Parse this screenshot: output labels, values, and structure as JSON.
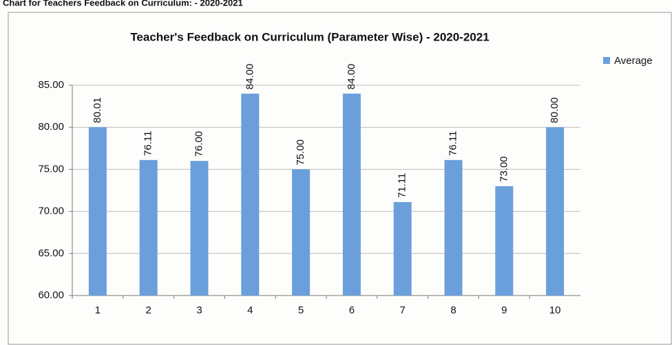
{
  "header": {
    "title": "Chart for Teachers Feedback on Curriculum: - 2020-2021"
  },
  "chart_data": {
    "type": "bar",
    "title": "Teacher's Feedback on Curriculum (Parameter Wise) - 2020-2021",
    "categories": [
      "1",
      "2",
      "3",
      "4",
      "5",
      "6",
      "7",
      "8",
      "9",
      "10"
    ],
    "series": [
      {
        "name": "Average",
        "color": "#6a9fdc",
        "values": [
          80.01,
          76.11,
          76,
          84,
          75,
          84,
          71.11,
          76.11,
          73,
          80
        ],
        "value_labels": [
          "80.01",
          "76.11",
          "76.00",
          "84.00",
          "75.00",
          "84.00",
          "71.11",
          "76.11",
          "73.00",
          "80.00"
        ]
      }
    ],
    "ylim": [
      60,
      85
    ],
    "yticks": [
      {
        "value": 60,
        "label": "60.00"
      },
      {
        "value": 65,
        "label": "65.00"
      },
      {
        "value": 70,
        "label": "70.00"
      },
      {
        "value": 75,
        "label": "75.00"
      },
      {
        "value": 80,
        "label": "80.00"
      },
      {
        "value": 85,
        "label": "85.00"
      }
    ],
    "grid": true,
    "legend": "right"
  }
}
